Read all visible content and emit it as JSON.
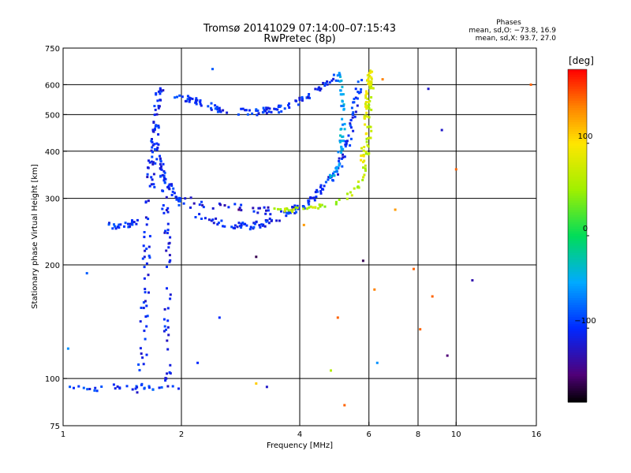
{
  "chart_data": {
    "type": "scatter",
    "title": "Tromsø 20141029 07:14:00–07:15:43",
    "subtitle": "RwPretec (8p)",
    "stats": {
      "heading": "Phases",
      "o_line": "mean, sd,O: −73.8, 16.9",
      "x_line": "mean, sd,X: 93.7, 27.0"
    },
    "xlabel": "Frequency [MHz]",
    "ylabel": "Stationary phase Virtual Height [km]",
    "x_scale": "log",
    "y_scale": "log",
    "xlim": [
      1,
      16
    ],
    "ylim": [
      75,
      750
    ],
    "x_ticks": [
      1,
      2,
      4,
      6,
      8,
      10,
      16
    ],
    "x_tick_labels": [
      "1",
      "2",
      "4",
      "6",
      "8",
      "10",
      "16"
    ],
    "y_ticks": [
      75,
      100,
      200,
      300,
      400,
      500,
      600,
      750
    ],
    "y_tick_labels": [
      "75",
      "100",
      "200",
      "300",
      "400",
      "500",
      "600",
      "750"
    ],
    "grid": true,
    "colorbar": {
      "label": "[deg]",
      "range": [
        -180,
        180
      ],
      "ticks": [
        100,
        0,
        -100
      ],
      "tick_labels": [
        "100",
        "0",
        "−100"
      ]
    },
    "trace_groups": [
      {
        "path": [
          [
            1.0,
            93
          ],
          [
            1.05,
            95
          ],
          [
            1.12,
            95
          ],
          [
            1.2,
            94
          ],
          [
            1.3,
            95
          ],
          [
            1.4,
            95
          ],
          [
            1.5,
            94
          ],
          [
            1.6,
            95
          ],
          [
            1.7,
            94
          ],
          [
            1.8,
            95
          ],
          [
            1.9,
            94
          ],
          [
            2.0,
            95
          ]
        ],
        "count": 30,
        "jitter": 3,
        "phase": -95
      },
      {
        "path": [
          [
            1.3,
            255
          ],
          [
            1.4,
            253
          ],
          [
            1.5,
            257
          ],
          [
            1.58,
            262
          ]
        ],
        "count": 25,
        "jitter": 4,
        "phase": -100
      },
      {
        "path": [
          [
            1.55,
            90
          ],
          [
            1.6,
            120
          ],
          [
            1.62,
            170
          ],
          [
            1.64,
            250
          ],
          [
            1.66,
            300
          ],
          [
            1.68,
            360
          ],
          [
            1.7,
            400
          ],
          [
            1.72,
            450
          ],
          [
            1.74,
            520
          ],
          [
            1.76,
            600
          ]
        ],
        "count": 110,
        "jitter": 5,
        "phase": -105
      },
      {
        "path": [
          [
            1.85,
            95
          ],
          [
            1.84,
            140
          ],
          [
            1.86,
            200
          ],
          [
            1.83,
            260
          ],
          [
            1.8,
            320
          ],
          [
            1.78,
            380
          ]
        ],
        "count": 55,
        "jitter": 4,
        "phase": -105
      },
      {
        "path": [
          [
            1.7,
            420
          ],
          [
            1.8,
            340
          ],
          [
            1.95,
            300
          ],
          [
            2.2,
            270
          ],
          [
            2.6,
            255
          ],
          [
            3.0,
            253
          ],
          [
            3.5,
            262
          ],
          [
            4.0,
            282
          ],
          [
            4.5,
            312
          ],
          [
            5.0,
            355
          ],
          [
            5.3,
            420
          ],
          [
            5.5,
            510
          ],
          [
            5.7,
            630
          ]
        ],
        "count": 180,
        "jitter": 4,
        "phase": -100
      },
      {
        "path": [
          [
            2.0,
            300
          ],
          [
            2.4,
            287
          ],
          [
            2.9,
            282
          ],
          [
            3.4,
            278
          ],
          [
            4.0,
            282
          ]
        ],
        "count": 35,
        "jitter": 5,
        "phase": -110
      },
      {
        "path": [
          [
            1.95,
            560
          ],
          [
            2.2,
            540
          ],
          [
            2.5,
            515
          ],
          [
            3.0,
            505
          ],
          [
            3.5,
            515
          ],
          [
            4.0,
            545
          ],
          [
            4.5,
            585
          ],
          [
            5.0,
            630
          ]
        ],
        "count": 110,
        "jitter": 4,
        "phase": -100
      },
      {
        "path": [
          [
            3.4,
            285
          ],
          [
            3.8,
            280
          ],
          [
            4.3,
            283
          ],
          [
            4.8,
            290
          ],
          [
            5.3,
            305
          ],
          [
            5.7,
            330
          ],
          [
            5.9,
            370
          ],
          [
            6.0,
            430
          ],
          [
            6.05,
            520
          ],
          [
            6.1,
            640
          ]
        ],
        "count": 75,
        "jitter": 3,
        "phase": 60
      },
      {
        "path": [
          [
            5.75,
            370
          ],
          [
            5.85,
            430
          ],
          [
            5.9,
            500
          ],
          [
            5.95,
            560
          ],
          [
            6.0,
            600
          ],
          [
            6.05,
            660
          ]
        ],
        "count": 55,
        "jitter": 3,
        "phase": 85
      },
      {
        "path": [
          [
            5.05,
            650
          ],
          [
            5.1,
            560
          ],
          [
            5.15,
            470
          ],
          [
            5.1,
            410
          ],
          [
            5.0,
            370
          ],
          [
            4.8,
            340
          ]
        ],
        "count": 55,
        "jitter": 3,
        "phase": -50
      }
    ],
    "scatter_points": [
      {
        "x": 8.5,
        "y": 585,
        "phase": -120
      },
      {
        "x": 9.2,
        "y": 455,
        "phase": -120
      },
      {
        "x": 11.0,
        "y": 182,
        "phase": -130
      },
      {
        "x": 10.0,
        "y": 358,
        "phase": 150
      },
      {
        "x": 9.5,
        "y": 115,
        "phase": -150
      },
      {
        "x": 7.0,
        "y": 280,
        "phase": 130
      },
      {
        "x": 6.2,
        "y": 172,
        "phase": 140
      },
      {
        "x": 6.5,
        "y": 620,
        "phase": 140
      },
      {
        "x": 5.0,
        "y": 145,
        "phase": 150
      },
      {
        "x": 5.2,
        "y": 85,
        "phase": 150
      },
      {
        "x": 4.8,
        "y": 105,
        "phase": 60
      },
      {
        "x": 3.1,
        "y": 97,
        "phase": 110
      },
      {
        "x": 3.3,
        "y": 95,
        "phase": -120
      },
      {
        "x": 2.5,
        "y": 145,
        "phase": -100
      },
      {
        "x": 2.2,
        "y": 110,
        "phase": -100
      },
      {
        "x": 1.15,
        "y": 190,
        "phase": -80
      },
      {
        "x": 1.03,
        "y": 120,
        "phase": -60
      },
      {
        "x": 2.8,
        "y": 280,
        "phase": -150
      },
      {
        "x": 3.1,
        "y": 210,
        "phase": -160
      },
      {
        "x": 4.1,
        "y": 255,
        "phase": 130
      },
      {
        "x": 5.8,
        "y": 205,
        "phase": -160
      },
      {
        "x": 7.8,
        "y": 195,
        "phase": 150
      },
      {
        "x": 8.7,
        "y": 165,
        "phase": 150
      },
      {
        "x": 8.1,
        "y": 135,
        "phase": 150
      },
      {
        "x": 6.3,
        "y": 110,
        "phase": -60
      },
      {
        "x": 2.4,
        "y": 660,
        "phase": -80
      },
      {
        "x": 15.5,
        "y": 600,
        "phase": 150
      }
    ]
  }
}
